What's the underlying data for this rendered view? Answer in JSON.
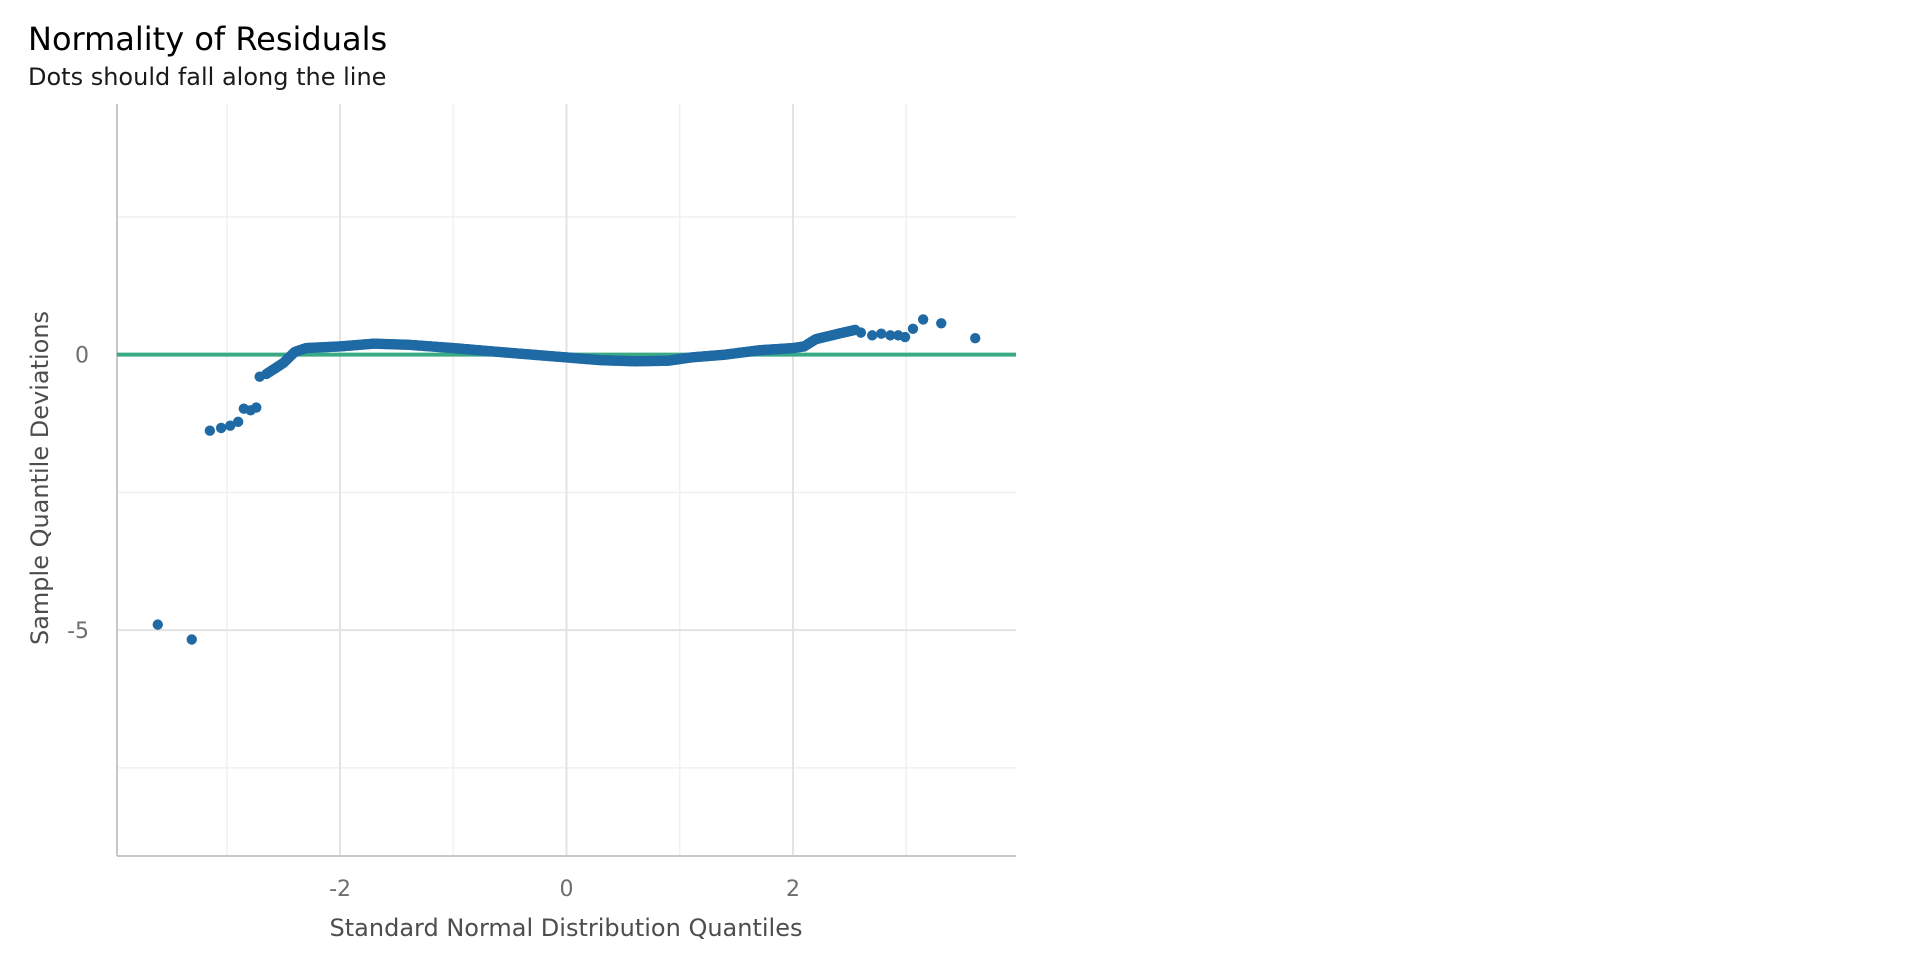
{
  "chart_data": {
    "type": "scatter",
    "title": "Normality of Residuals",
    "subtitle": "Dots should fall along the line",
    "xlabel": "Standard Normal Distribution Quantiles",
    "ylabel": "Sample Quantile Deviations",
    "xlim": [
      -3.97,
      3.97
    ],
    "ylim": [
      -9.1,
      4.55
    ],
    "x_ticks": [
      -2,
      0,
      2
    ],
    "x_tick_labels": [
      "-2",
      "0",
      "2"
    ],
    "y_ticks": [
      -5,
      0
    ],
    "y_tick_labels": [
      "-5",
      "0"
    ],
    "grid": true,
    "reference_line": {
      "y": 0,
      "color": "#3aaa85"
    },
    "point_color": "#1f6aa5",
    "curve_anchors": [
      [
        -2.65,
        -0.35
      ],
      [
        -2.5,
        -0.15
      ],
      [
        -2.4,
        0.05
      ],
      [
        -2.3,
        0.12
      ],
      [
        -2.0,
        0.15
      ],
      [
        -1.7,
        0.2
      ],
      [
        -1.4,
        0.18
      ],
      [
        -1.0,
        0.12
      ],
      [
        -0.6,
        0.05
      ],
      [
        -0.3,
        0.0
      ],
      [
        0.0,
        -0.05
      ],
      [
        0.3,
        -0.1
      ],
      [
        0.6,
        -0.12
      ],
      [
        0.9,
        -0.11
      ],
      [
        1.1,
        -0.05
      ],
      [
        1.4,
        0.0
      ],
      [
        1.7,
        0.08
      ],
      [
        2.0,
        0.12
      ],
      [
        2.1,
        0.15
      ],
      [
        2.2,
        0.28
      ],
      [
        2.4,
        0.38
      ],
      [
        2.55,
        0.45
      ]
    ],
    "outlier_points": [
      {
        "x": -3.61,
        "y": -4.9
      },
      {
        "x": -3.31,
        "y": -5.17
      },
      {
        "x": -3.15,
        "y": -1.38
      },
      {
        "x": -3.05,
        "y": -1.33
      },
      {
        "x": -2.97,
        "y": -1.29
      },
      {
        "x": -2.9,
        "y": -1.22
      },
      {
        "x": -2.85,
        "y": -0.98
      },
      {
        "x": -2.79,
        "y": -1.01
      },
      {
        "x": -2.74,
        "y": -0.96
      },
      {
        "x": -2.71,
        "y": -0.4
      },
      {
        "x": 2.6,
        "y": 0.4
      },
      {
        "x": 2.7,
        "y": 0.35
      },
      {
        "x": 2.78,
        "y": 0.38
      },
      {
        "x": 2.86,
        "y": 0.35
      },
      {
        "x": 2.93,
        "y": 0.35
      },
      {
        "x": 2.99,
        "y": 0.32
      },
      {
        "x": 3.06,
        "y": 0.47
      },
      {
        "x": 3.15,
        "y": 0.64
      },
      {
        "x": 3.31,
        "y": 0.57
      },
      {
        "x": 3.61,
        "y": 0.3
      }
    ]
  }
}
